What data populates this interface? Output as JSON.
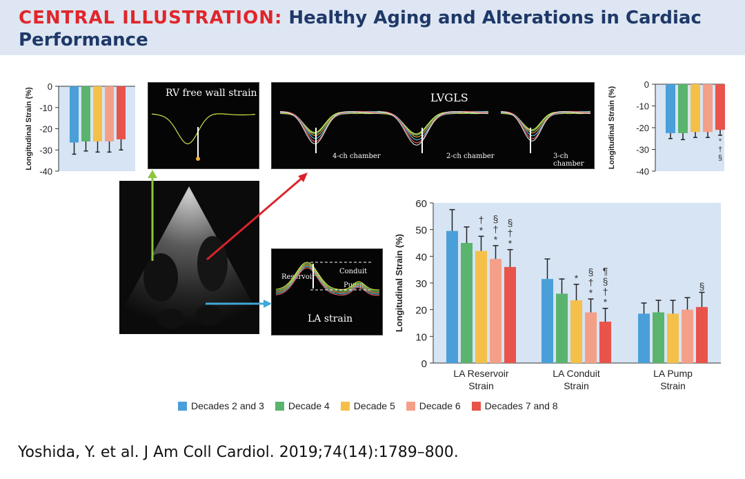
{
  "header": {
    "title_prefix": "CENTRAL ILLUSTRATION:",
    "title_main": "Healthy Aging and Alterations in Cardiac",
    "title_line2": "Performance"
  },
  "citation": "Yoshida, Y. et al. J Am Coll Cardiol. 2019;74(14):1789–800.",
  "colors": {
    "d23": "#4a9fd8",
    "d4": "#5ab46e",
    "d5": "#f5c04a",
    "d6": "#f4a089",
    "d78": "#e8534a",
    "plot_bg": "#d6e4f4",
    "header_bg": "#dde6f2"
  },
  "legend": [
    {
      "label": "Decades 2 and 3",
      "color": "#4a9fd8"
    },
    {
      "label": "Decade 4",
      "color": "#5ab46e"
    },
    {
      "label": "Decade 5",
      "color": "#f5c04a"
    },
    {
      "label": "Decade 6",
      "color": "#f4a089"
    },
    {
      "label": "Decades 7 and 8",
      "color": "#e8534a"
    }
  ],
  "panels": {
    "rv": {
      "title": "RV free wall strain"
    },
    "lvgls": {
      "title": "LVGLS",
      "labels": [
        "4-ch chamber",
        "2-ch chamber",
        "3-ch chamber"
      ]
    },
    "la": {
      "title": "LA strain",
      "labels": [
        "Reservoir",
        "Conduit",
        "Pump"
      ]
    }
  },
  "chart_data": [
    {
      "type": "bar",
      "id": "rv_strain",
      "ylabel": "Longitudinal Strain (%)",
      "ylim": [
        -40,
        0
      ],
      "yticks": [
        "0",
        "-10",
        "-20",
        "-30",
        "-40"
      ],
      "values": [
        -26.5,
        -26,
        -26,
        -26,
        -25
      ],
      "errors": [
        5.5,
        4.5,
        5,
        5,
        5
      ]
    },
    {
      "type": "bar",
      "id": "lvgls",
      "ylabel": "Longitudinal Strain (%)",
      "ylim": [
        -40,
        0
      ],
      "yticks": [
        "0",
        "-10",
        "-20",
        "-30",
        "-40"
      ],
      "values": [
        -22.5,
        -22.5,
        -22,
        -22,
        -21
      ],
      "errors": [
        2.5,
        3,
        2.5,
        2.5,
        2.5
      ],
      "annotations": [
        "",
        "",
        "",
        "",
        "*\n†\n§"
      ]
    },
    {
      "type": "bar",
      "id": "la_strain",
      "ylabel": "Longitudinal Strain (%)",
      "ylim": [
        0,
        60
      ],
      "yticks": [
        "0",
        "10",
        "20",
        "30",
        "40",
        "50",
        "60"
      ],
      "categories": [
        "LA Reservoir\nStrain",
        "LA Conduit\nStrain",
        "LA Pump\nStrain"
      ],
      "series": [
        {
          "name": "Decades 2 and 3",
          "values": [
            49.5,
            31.5,
            18.5
          ],
          "errors": [
            8,
            7.5,
            4
          ]
        },
        {
          "name": "Decade 4",
          "values": [
            45,
            26,
            19
          ],
          "errors": [
            6,
            5.5,
            4.5
          ]
        },
        {
          "name": "Decade 5",
          "values": [
            42,
            23.5,
            18.5
          ],
          "errors": [
            5.5,
            6,
            5
          ]
        },
        {
          "name": "Decade 6",
          "values": [
            39,
            19,
            20
          ],
          "errors": [
            5,
            5,
            4.5
          ]
        },
        {
          "name": "Decades 7 and 8",
          "values": [
            36,
            15.5,
            21
          ],
          "errors": [
            6.5,
            5,
            5.5
          ]
        }
      ],
      "annotations": [
        [
          "",
          "",
          "†\n*",
          "§\n†\n*",
          "§\n†\n*"
        ],
        [
          "",
          "",
          "*",
          "§\n†\n*",
          "¶\n§\n†\n*"
        ],
        [
          "",
          "",
          "",
          "",
          "§"
        ]
      ]
    }
  ]
}
